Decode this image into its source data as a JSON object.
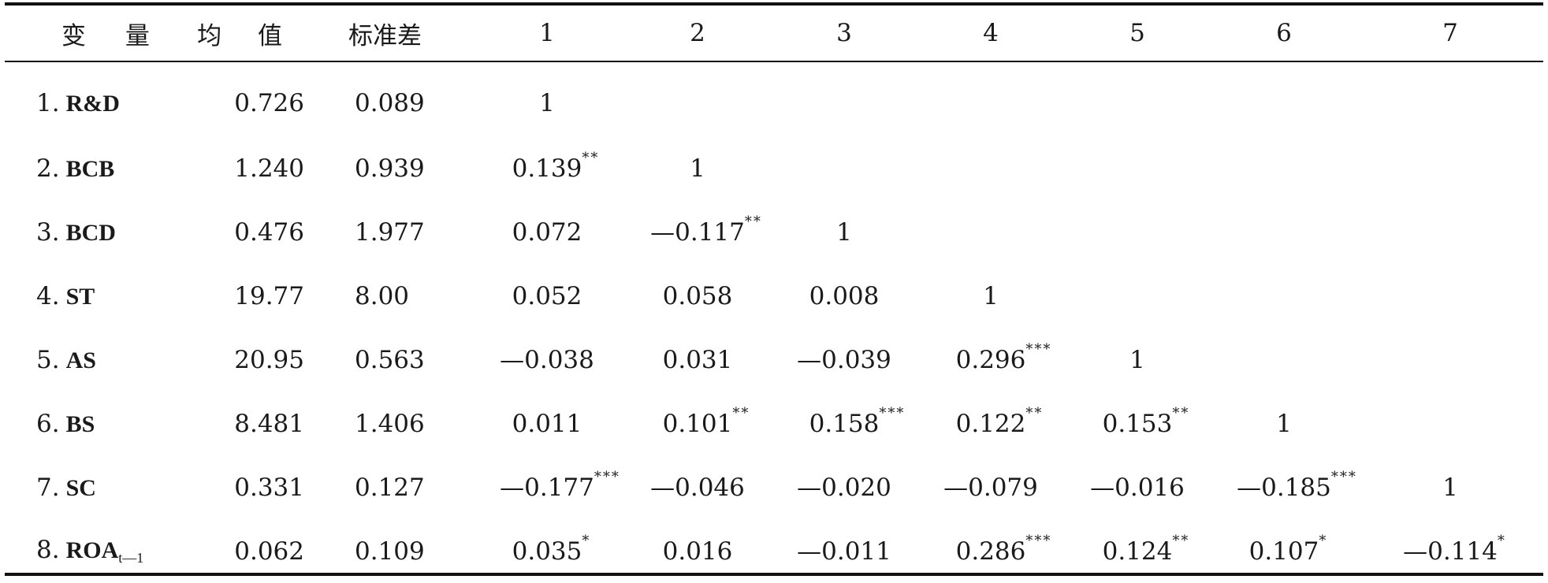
{
  "headers": [
    "变 量",
    "均 值",
    "标准差",
    "1",
    "2",
    "3",
    "4",
    "5",
    "6",
    "7"
  ],
  "rows": [
    {
      "index": "1.",
      "label": "R&D",
      "sub": "",
      "mean": "0.726",
      "std": "0.089",
      "cells": [
        {
          "v": "1",
          "s": ""
        },
        {
          "v": "",
          "s": ""
        },
        {
          "v": "",
          "s": ""
        },
        {
          "v": "",
          "s": ""
        },
        {
          "v": "",
          "s": ""
        },
        {
          "v": "",
          "s": ""
        },
        {
          "v": "",
          "s": ""
        }
      ]
    },
    {
      "index": "2.",
      "label": "BCB",
      "sub": "",
      "mean": "1.240",
      "std": "0.939",
      "cells": [
        {
          "v": "0.139",
          "s": "**"
        },
        {
          "v": "1",
          "s": ""
        },
        {
          "v": "",
          "s": ""
        },
        {
          "v": "",
          "s": ""
        },
        {
          "v": "",
          "s": ""
        },
        {
          "v": "",
          "s": ""
        },
        {
          "v": "",
          "s": ""
        }
      ]
    },
    {
      "index": "3.",
      "label": "BCD",
      "sub": "",
      "mean": "0.476",
      "std": "1.977",
      "cells": [
        {
          "v": "0.072",
          "s": ""
        },
        {
          "v": "—0.117",
          "s": "**"
        },
        {
          "v": "1",
          "s": ""
        },
        {
          "v": "",
          "s": ""
        },
        {
          "v": "",
          "s": ""
        },
        {
          "v": "",
          "s": ""
        },
        {
          "v": "",
          "s": ""
        }
      ]
    },
    {
      "index": "4.",
      "label": "ST",
      "sub": "",
      "mean": "19.77",
      "std": "8.00",
      "cells": [
        {
          "v": "0.052",
          "s": ""
        },
        {
          "v": "0.058",
          "s": ""
        },
        {
          "v": "0.008",
          "s": ""
        },
        {
          "v": "1",
          "s": ""
        },
        {
          "v": "",
          "s": ""
        },
        {
          "v": "",
          "s": ""
        },
        {
          "v": "",
          "s": ""
        }
      ]
    },
    {
      "index": "5.",
      "label": "AS",
      "sub": "",
      "mean": "20.95",
      "std": "0.563",
      "cells": [
        {
          "v": "—0.038",
          "s": ""
        },
        {
          "v": "0.031",
          "s": ""
        },
        {
          "v": "—0.039",
          "s": ""
        },
        {
          "v": "0.296",
          "s": "***"
        },
        {
          "v": "1",
          "s": ""
        },
        {
          "v": "",
          "s": ""
        },
        {
          "v": "",
          "s": ""
        }
      ]
    },
    {
      "index": "6.",
      "label": "BS",
      "sub": "",
      "mean": "8.481",
      "std": "1.406",
      "cells": [
        {
          "v": "0.011",
          "s": ""
        },
        {
          "v": "0.101",
          "s": "**"
        },
        {
          "v": "0.158",
          "s": "***"
        },
        {
          "v": "0.122",
          "s": "**"
        },
        {
          "v": "0.153",
          "s": "**"
        },
        {
          "v": "1",
          "s": ""
        },
        {
          "v": "",
          "s": ""
        }
      ]
    },
    {
      "index": "7.",
      "label": "SC",
      "sub": "",
      "mean": "0.331",
      "std": "0.127",
      "cells": [
        {
          "v": "—0.177",
          "s": "***"
        },
        {
          "v": "—0.046",
          "s": ""
        },
        {
          "v": "—0.020",
          "s": ""
        },
        {
          "v": "—0.079",
          "s": ""
        },
        {
          "v": "—0.016",
          "s": ""
        },
        {
          "v": "—0.185",
          "s": "***"
        },
        {
          "v": "1",
          "s": ""
        }
      ]
    },
    {
      "index": "8.",
      "label": "ROA",
      "sub": "t—1",
      "mean": "0.062",
      "std": "0.109",
      "cells": [
        {
          "v": "0.035",
          "s": "*"
        },
        {
          "v": "0.016",
          "s": ""
        },
        {
          "v": "—0.011",
          "s": ""
        },
        {
          "v": "0.286",
          "s": "***"
        },
        {
          "v": "0.124",
          "s": "**"
        },
        {
          "v": "0.107",
          "s": "*"
        },
        {
          "v": "—0.114",
          "s": "*"
        }
      ]
    }
  ]
}
